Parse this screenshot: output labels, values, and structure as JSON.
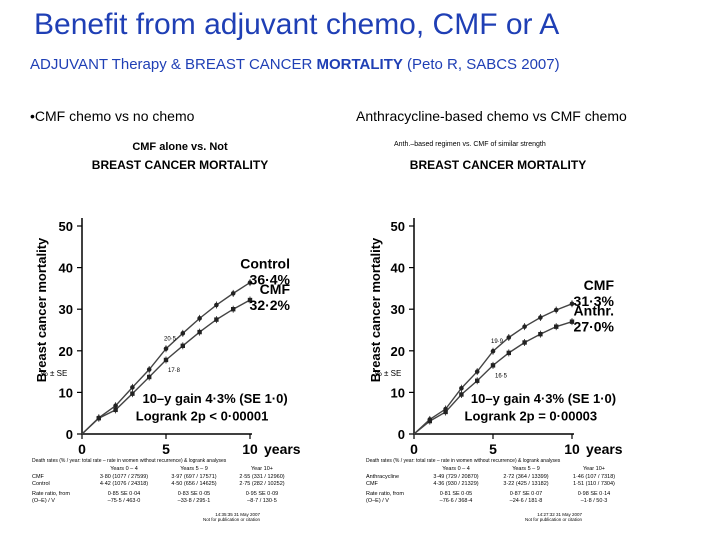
{
  "slide": {
    "title": "Benefit from adjuvant chemo, CMF or A",
    "subtitle_part1": "ADJUVANT Therapy & BREAST CANCER ",
    "subtitle_bold": "MORTALITY",
    "subtitle_part2": "  (Peto R, SABCS 2007)",
    "left_label": "•CMF chemo vs no chemo",
    "right_label": "Anthracycline-based chemo vs CMF chemo"
  },
  "colors": {
    "title": "#1f3fb5",
    "line": "#444444"
  },
  "chart_data": [
    {
      "type": "line",
      "header_small": "",
      "title1": "CMF alone vs. Not",
      "title2": "BREAST CANCER MORTALITY",
      "ylabel": "Breast cancer mortality",
      "ylabel_sub": "% ± SE",
      "xlabel": "years",
      "xlim": [
        0,
        10
      ],
      "ylim": [
        0,
        50
      ],
      "xticks": [
        "0",
        "5",
        "10"
      ],
      "yticks": [
        "0",
        "10",
        "20",
        "30",
        "40",
        "50"
      ],
      "series": [
        {
          "name": "Control",
          "end_label": "36·4%",
          "x": [
            0,
            1,
            2,
            3,
            4,
            5,
            6,
            7,
            8,
            9,
            10
          ],
          "values": [
            0,
            3.9,
            6.8,
            11.2,
            15.5,
            20.5,
            24.2,
            27.8,
            31.0,
            33.8,
            36.4
          ]
        },
        {
          "name": "CMF",
          "end_label": "32·2%",
          "x": [
            0,
            1,
            2,
            3,
            4,
            5,
            6,
            7,
            8,
            9,
            10
          ],
          "values": [
            0,
            3.8,
            5.8,
            9.7,
            13.7,
            17.8,
            21.2,
            24.5,
            27.5,
            30.0,
            32.2
          ]
        }
      ],
      "annotations": [
        "20·5",
        "17·8"
      ],
      "gain_text": "10–y gain 4·3% (SE 1·0)",
      "logrank_text": "Logrank 2p < 0·00001",
      "table": {
        "headers": [
          "Years 0 – 4",
          "Years 5 – 9",
          "Year 10+"
        ],
        "caption": "Death rates (% / year: total rate – rate in women without recurrence) & logrank analyses",
        "rows": [
          [
            "CMF",
            "3·80 (1077 / 27599)",
            "3·97 (697 / 17571)",
            "2·55 (331 / 12960)"
          ],
          [
            "Control",
            "4·42 (1076 / 24318)",
            "4·50 (656 / 14625)",
            "2·75 (282 / 10252)"
          ],
          [
            "Rate ratio, from",
            "0·85 SE 0·04",
            "0·83 SE 0·05",
            "0·95 SE 0·09"
          ],
          [
            "(O–E) / V",
            "–75·5 / 463·0",
            "–33·8 / 295·1",
            "–8·7 / 130·5"
          ]
        ]
      },
      "footer": [
        "14:35:35  31 May 2007",
        "Not for publication or citation"
      ]
    },
    {
      "type": "line",
      "header_small": "Anth.–based regimen vs. CMF of similar strength",
      "title1": "",
      "title2": "BREAST CANCER MORTALITY",
      "ylabel": "Breast cancer mortality",
      "ylabel_sub": "% ± SE",
      "xlabel": "years",
      "xlim": [
        0,
        10
      ],
      "ylim": [
        0,
        50
      ],
      "xticks": [
        "0",
        "5",
        "10"
      ],
      "yticks": [
        "0",
        "10",
        "20",
        "30",
        "40",
        "50"
      ],
      "series": [
        {
          "name": "CMF",
          "end_label": "31·3%",
          "x": [
            0,
            1,
            2,
            3,
            4,
            5,
            6,
            7,
            8,
            9,
            10
          ],
          "values": [
            0,
            3.5,
            6.0,
            11.0,
            15.0,
            19.9,
            23.2,
            25.8,
            28.0,
            29.8,
            31.3
          ]
        },
        {
          "name": "Anthr.",
          "end_label": "27·0%",
          "x": [
            0,
            1,
            2,
            3,
            4,
            5,
            6,
            7,
            8,
            9,
            10
          ],
          "values": [
            0,
            3.1,
            5.3,
            9.5,
            12.8,
            16.5,
            19.5,
            22.0,
            24.0,
            25.8,
            27.0
          ]
        }
      ],
      "annotations": [
        "19·9",
        "16·5"
      ],
      "gain_text": "10–y gain 4·3% (SE 1·0)",
      "logrank_text": "Logrank 2p = 0·00003",
      "table": {
        "headers": [
          "Years 0 – 4",
          "Years 5 – 9",
          "Year 10+"
        ],
        "caption": "Death rates (% / year: total rate – rate in women without recurrence) & logrank analyses",
        "rows": [
          [
            "Anthracycline",
            "3·49 (729 / 20870)",
            "2·72 (364 / 13399)",
            "1·46 (107 / 7318)"
          ],
          [
            "CMF",
            "4·36 (930 / 21329)",
            "3·22 (425 / 13182)",
            "1·51 (110 / 7304)"
          ],
          [
            "Rate ratio, from",
            "0·81 SE 0·05",
            "0·87 SE 0·07",
            "0·98 SE 0·14"
          ],
          [
            "(O–E) / V",
            "–76·6 / 368·4",
            "–24·6 / 181·8",
            "–1·8 / 50·3"
          ]
        ]
      },
      "footer": [
        "14:27:32  31 May 2007",
        "Not for publication or citation"
      ]
    }
  ]
}
